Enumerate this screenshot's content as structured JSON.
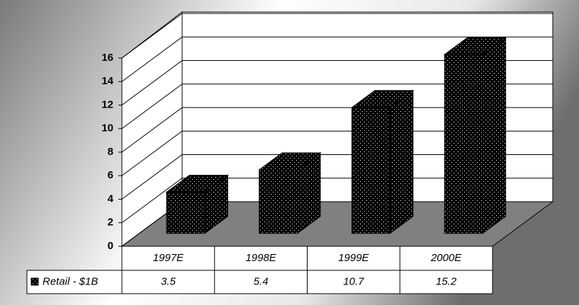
{
  "chart_data": {
    "type": "bar3d",
    "categories": [
      "1997E",
      "1998E",
      "1999E",
      "2000E"
    ],
    "series": [
      {
        "name": "Retail - $1B",
        "color": "#000000",
        "values": [
          3.5,
          5.4,
          10.7,
          15.2
        ]
      }
    ],
    "ylim": [
      0,
      16
    ],
    "yticks": [
      0,
      2,
      4,
      6,
      8,
      10,
      12,
      14,
      16
    ],
    "grid": true
  }
}
